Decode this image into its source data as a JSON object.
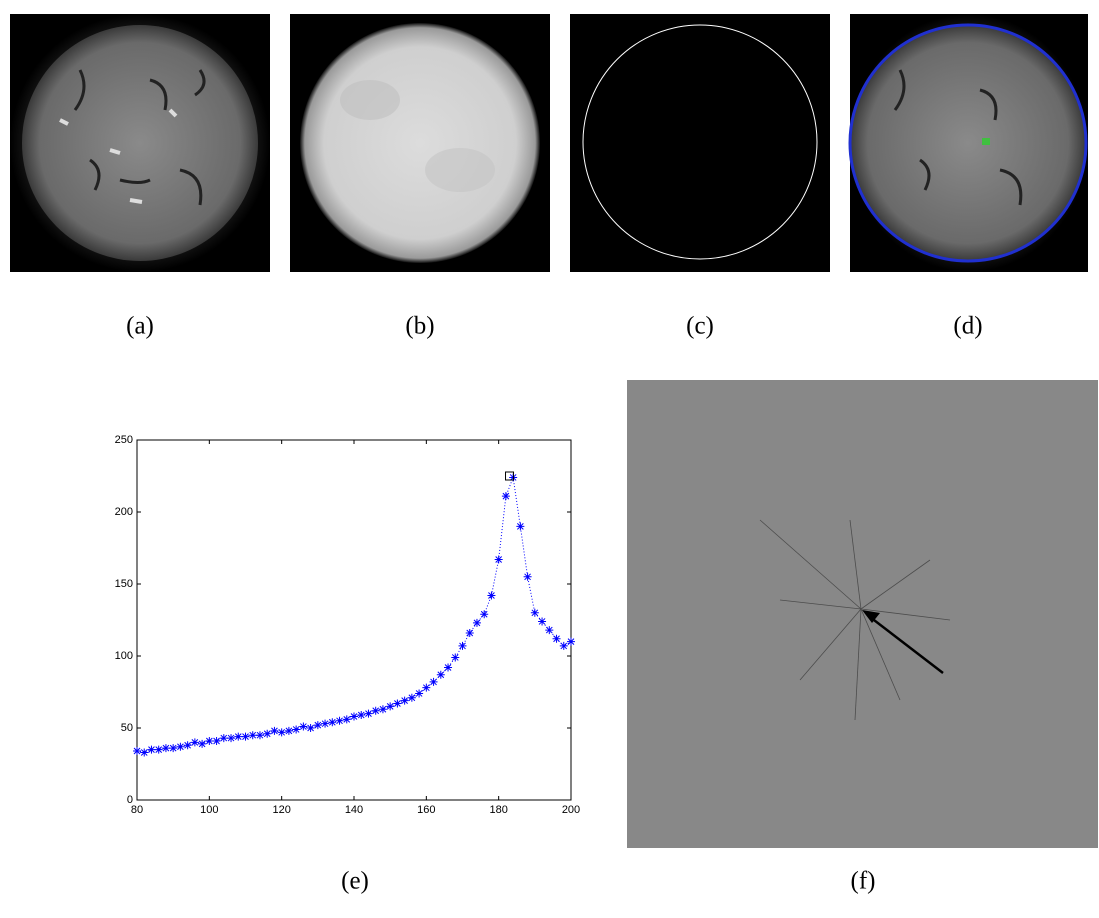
{
  "labels": [
    "(a)",
    "(b)",
    "(c)",
    "(d)",
    "(e)",
    "(f)"
  ],
  "chart_data": {
    "type": "line",
    "x": [
      80,
      82,
      84,
      86,
      88,
      90,
      92,
      94,
      96,
      98,
      100,
      102,
      104,
      106,
      108,
      110,
      112,
      114,
      116,
      118,
      120,
      122,
      124,
      126,
      128,
      130,
      132,
      134,
      136,
      138,
      140,
      142,
      144,
      146,
      148,
      150,
      152,
      154,
      156,
      158,
      160,
      162,
      164,
      166,
      168,
      170,
      172,
      174,
      176,
      178,
      180,
      182,
      184,
      186,
      188,
      190,
      192,
      194,
      196,
      198,
      200
    ],
    "series": [
      {
        "color": "#0000ff",
        "values": [
          34,
          33,
          35,
          35,
          36,
          36,
          37,
          38,
          40,
          39,
          41,
          41,
          43,
          43,
          44,
          44,
          45,
          45,
          46,
          48,
          47,
          48,
          49,
          51,
          50,
          52,
          53,
          54,
          55,
          56,
          58,
          59,
          60,
          62,
          63,
          65,
          67,
          69,
          71,
          74,
          78,
          82,
          87,
          92,
          99,
          107,
          116,
          123,
          129,
          142,
          167,
          211,
          224,
          190,
          155,
          130,
          124,
          118,
          112,
          107,
          110
        ]
      }
    ],
    "highlight": {
      "x": 183,
      "y": 225
    },
    "xlim": [
      80,
      200
    ],
    "ylim": [
      0,
      250
    ],
    "xticks": [
      80,
      100,
      120,
      140,
      160,
      180,
      200
    ],
    "yticks": [
      0,
      50,
      100,
      150,
      200,
      250
    ]
  }
}
